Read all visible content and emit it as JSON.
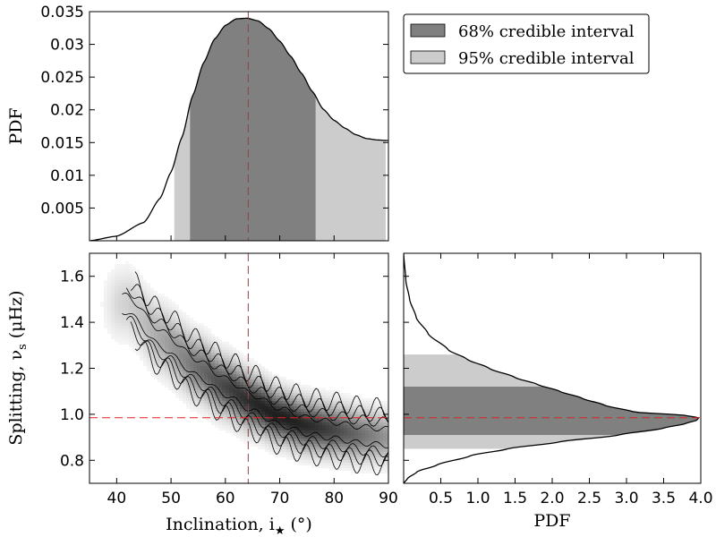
{
  "chart_data": [
    {
      "type": "area",
      "panel": "top",
      "xlim": [
        35,
        90
      ],
      "ylim": [
        0,
        0.035
      ],
      "ylabel": "PDF",
      "yticks": [
        {
          "value": 0.005,
          "label": "0.005"
        },
        {
          "value": 0.01,
          "label": "0.01"
        },
        {
          "value": 0.015,
          "label": "0.015"
        },
        {
          "value": 0.02,
          "label": "0.02"
        },
        {
          "value": 0.025,
          "label": "0.025"
        },
        {
          "value": 0.03,
          "label": "0.03"
        },
        {
          "value": 0.035,
          "label": "0.035"
        }
      ],
      "x": [
        35,
        40,
        45,
        48,
        50,
        52,
        54,
        56,
        58,
        60,
        62,
        64,
        66,
        68,
        70,
        72,
        74,
        76,
        78,
        80,
        82,
        84,
        86,
        88,
        90
      ],
      "pdf": [
        0.0,
        0.0007,
        0.0028,
        0.0065,
        0.0105,
        0.0158,
        0.0222,
        0.0272,
        0.0308,
        0.0329,
        0.0339,
        0.034,
        0.0336,
        0.0324,
        0.0305,
        0.0282,
        0.0256,
        0.0228,
        0.0201,
        0.0184,
        0.0172,
        0.0162,
        0.0156,
        0.0154,
        0.0153
      ],
      "median": 64.2,
      "ci68": [
        53.5,
        76.6
      ],
      "ci95": [
        50.6,
        89.5
      ],
      "colors": {
        "ci68": "#808080",
        "ci95": "#cccccc",
        "median": "#dd2222"
      }
    },
    {
      "type": "heatmap",
      "panel": "joint",
      "xlabel": "Inclination, i",
      "xlabel_sub": "★",
      "xlabel_unit": "(°)",
      "ylabel": "Splitting, ν",
      "ylabel_sub": "s",
      "ylabel_unit": "(μHz)",
      "xlim": [
        35,
        90
      ],
      "ylim": [
        0.7,
        1.7
      ],
      "xticks": [
        {
          "value": 40,
          "label": "40"
        },
        {
          "value": 50,
          "label": "50"
        },
        {
          "value": 60,
          "label": "60"
        },
        {
          "value": 70,
          "label": "70"
        },
        {
          "value": 80,
          "label": "80"
        },
        {
          "value": 90,
          "label": "90"
        }
      ],
      "yticks": [
        {
          "value": 0.8,
          "label": "0.8"
        },
        {
          "value": 1.0,
          "label": "1.0"
        },
        {
          "value": 1.2,
          "label": "1.2"
        },
        {
          "value": 1.4,
          "label": "1.4"
        },
        {
          "value": 1.6,
          "label": "1.6"
        }
      ],
      "ridge": [
        [
          42,
          1.48
        ],
        [
          48,
          1.33
        ],
        [
          55,
          1.2
        ],
        [
          60,
          1.12
        ],
        [
          65,
          1.05
        ],
        [
          70,
          0.99
        ],
        [
          75,
          0.95
        ],
        [
          80,
          0.93
        ],
        [
          85,
          0.91
        ],
        [
          90,
          0.9
        ]
      ],
      "contour_widths": [
        0.035,
        0.065,
        0.095,
        0.125
      ],
      "median_x": 64.2,
      "median_y": 0.985
    },
    {
      "type": "area",
      "panel": "right",
      "xlabel": "PDF",
      "xlim": [
        0,
        4.0
      ],
      "ylim": [
        0.7,
        1.7
      ],
      "xticks": [
        {
          "value": 0.5,
          "label": "0.5"
        },
        {
          "value": 1.0,
          "label": "1.0"
        },
        {
          "value": 1.5,
          "label": "1.5"
        },
        {
          "value": 2.0,
          "label": "2.0"
        },
        {
          "value": 2.5,
          "label": "2.5"
        },
        {
          "value": 3.0,
          "label": "3.0"
        },
        {
          "value": 3.5,
          "label": "3.5"
        },
        {
          "value": 4.0,
          "label": "4.0"
        }
      ],
      "y": [
        0.7,
        0.72,
        0.75,
        0.78,
        0.82,
        0.85,
        0.88,
        0.91,
        0.94,
        0.96,
        0.975,
        0.985,
        0.995,
        1.01,
        1.04,
        1.07,
        1.1,
        1.13,
        1.16,
        1.2,
        1.24,
        1.28,
        1.35,
        1.42,
        1.5,
        1.58,
        1.7
      ],
      "pdf": [
        0.0,
        0.05,
        0.18,
        0.45,
        0.9,
        1.4,
        2.1,
        2.9,
        3.5,
        3.8,
        3.95,
        3.97,
        3.8,
        3.1,
        2.7,
        2.4,
        2.1,
        1.8,
        1.5,
        1.15,
        0.85,
        0.6,
        0.33,
        0.17,
        0.08,
        0.03,
        0.0
      ],
      "median": 0.985,
      "ci68": [
        0.91,
        1.12
      ],
      "ci95": [
        0.85,
        1.26
      ]
    }
  ],
  "legend": {
    "items": [
      {
        "label": "68% credible interval",
        "color": "#808080"
      },
      {
        "label": "95% credible interval",
        "color": "#cccccc"
      }
    ]
  }
}
